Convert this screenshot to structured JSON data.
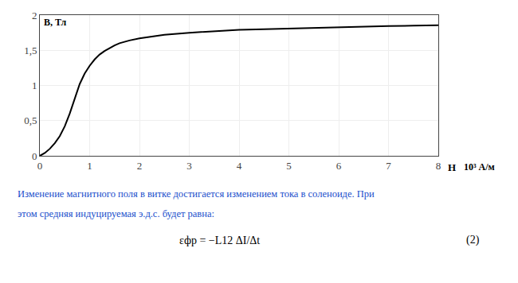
{
  "chart_data": {
    "type": "line",
    "xlabel": "H",
    "ylabel": "B, Тл",
    "x": [
      0,
      0.1,
      0.2,
      0.3,
      0.4,
      0.5,
      0.6,
      0.7,
      0.8,
      0.9,
      1.0,
      1.1,
      1.2,
      1.3,
      1.4,
      1.5,
      1.6,
      1.8,
      2.0,
      2.5,
      3.0,
      3.5,
      4.0,
      4.5,
      5.0,
      5.5,
      6.0,
      6.5,
      7.0,
      7.5,
      8.0
    ],
    "values": [
      0,
      0.04,
      0.1,
      0.18,
      0.28,
      0.42,
      0.6,
      0.82,
      1.02,
      1.17,
      1.28,
      1.37,
      1.44,
      1.49,
      1.53,
      1.57,
      1.6,
      1.64,
      1.67,
      1.72,
      1.75,
      1.77,
      1.79,
      1.8,
      1.81,
      1.82,
      1.83,
      1.84,
      1.845,
      1.85,
      1.855
    ],
    "color": "#000000",
    "xlim": [
      0,
      8
    ],
    "ylim": [
      0,
      2
    ],
    "xticks": [
      0,
      1,
      2,
      3,
      4,
      5,
      6,
      7,
      8
    ],
    "yticks": [
      0,
      {
        "value": 0.5,
        "label": "0,5"
      },
      1,
      {
        "value": 1.5,
        "label": "1,5"
      },
      2
    ],
    "grid": true,
    "annotations": [
      {
        "text": "10³ А/м"
      },
      {
        "text": "Изменение магнитного поля в витке достигается изменением тока в соленоиде. При",
        "color": "#1a4fcc"
      },
      {
        "text": "этом средняя индуцируемая э.д.с. будет равна:",
        "color": "#1a4fcc"
      },
      {
        "text": "εфр = −L12 ΔI/Δt"
      },
      {
        "text": "(2)"
      }
    ]
  }
}
